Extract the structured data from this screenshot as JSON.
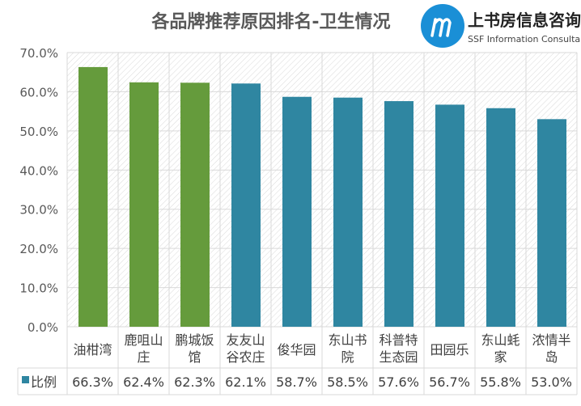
{
  "chart_data": {
    "type": "bar",
    "title": "各品牌推荐原因排名-卫生情况",
    "xlabel": "",
    "ylabel": "",
    "ylim": [
      0,
      70
    ],
    "yticks": [
      "0.0%",
      "10.0%",
      "20.0%",
      "30.0%",
      "40.0%",
      "50.0%",
      "60.0%",
      "70.0%"
    ],
    "grid": true,
    "categories": [
      "油柑湾",
      "鹿咀山庄",
      "鹏城饭馆",
      "友友山谷农庄",
      "俊华园",
      "东山书院",
      "科普特生态园",
      "田园乐",
      "东山蚝家",
      "浓情半岛"
    ],
    "category_lines": [
      [
        "油柑湾"
      ],
      [
        "鹿咀山",
        "庄"
      ],
      [
        "鹏城饭",
        "馆"
      ],
      [
        "友友山",
        "谷农庄"
      ],
      [
        "俊华园"
      ],
      [
        "东山书",
        "院"
      ],
      [
        "科普特",
        "生态园"
      ],
      [
        "田园乐"
      ],
      [
        "东山蚝",
        "家"
      ],
      [
        "浓情半",
        "岛"
      ]
    ],
    "series": [
      {
        "name": "比例",
        "values": [
          66.3,
          62.4,
          62.3,
          62.1,
          58.7,
          58.5,
          57.6,
          56.7,
          55.8,
          53.0
        ]
      }
    ],
    "value_labels": [
      "66.3%",
      "62.4%",
      "62.3%",
      "62.1%",
      "58.7%",
      "58.5%",
      "57.6%",
      "56.7%",
      "55.8%",
      "53.0%"
    ],
    "legend": "bottom-table",
    "colors": {
      "highlight": "#659b3c",
      "normal": "#2f86a1",
      "highlight_count": 3
    }
  },
  "watermark": {
    "text_cn": "上书房信息咨询",
    "text_en": "SSF Information Consultancy"
  }
}
